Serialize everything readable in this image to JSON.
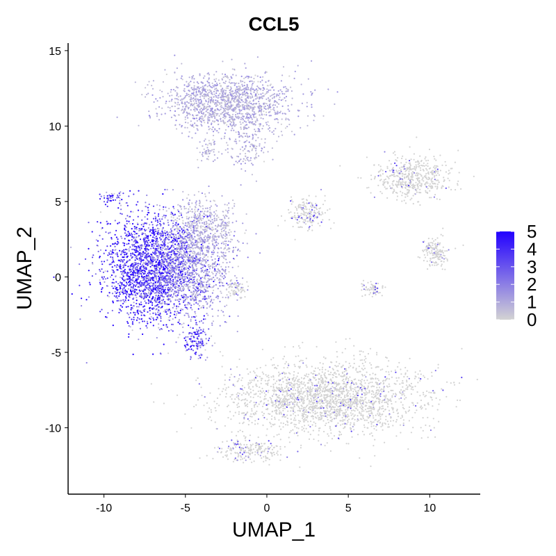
{
  "chart_data": {
    "type": "scatter",
    "title": "CCL5",
    "xlabel": "UMAP_1",
    "ylabel": "UMAP_2",
    "xlim": [
      -12.2,
      13.1
    ],
    "ylim": [
      -14.4,
      15.5
    ],
    "xticks": [
      -10,
      -5,
      0,
      5,
      10
    ],
    "yticks": [
      -10,
      -5,
      0,
      5,
      10,
      15
    ],
    "grid": false,
    "legend": {
      "position": "right",
      "title": "",
      "ticks": [
        0,
        1,
        2,
        3,
        4,
        5
      ],
      "low_color": "#d3d3d3",
      "high_color": "#2200ff"
    },
    "clusters": [
      {
        "x": -7.0,
        "y": 0.6,
        "sx": 1.5,
        "sy": 1.8,
        "expr_mean": 3.6,
        "n": 2200
      },
      {
        "x": -4.5,
        "y": 0.8,
        "sx": 1.3,
        "sy": 1.8,
        "expr_mean": 1.2,
        "n": 1000
      },
      {
        "x": -4.0,
        "y": 3.5,
        "sx": 0.9,
        "sy": 0.9,
        "expr_mean": 0.6,
        "n": 300
      },
      {
        "x": -4.3,
        "y": -4.2,
        "sx": 0.4,
        "sy": 0.6,
        "expr_mean": 3.0,
        "n": 120
      },
      {
        "x": -1.8,
        "y": -0.8,
        "sx": 0.3,
        "sy": 0.3,
        "expr_mean": 0.2,
        "n": 60
      },
      {
        "x": -2.5,
        "y": 11.5,
        "sx": 2.0,
        "sy": 1.0,
        "expr_mean": 0.9,
        "n": 1400
      },
      {
        "x": -1.2,
        "y": 8.5,
        "sx": 0.6,
        "sy": 0.7,
        "expr_mean": 0.8,
        "n": 120
      },
      {
        "x": -3.6,
        "y": 8.3,
        "sx": 0.3,
        "sy": 0.3,
        "expr_mean": 0.6,
        "n": 50
      },
      {
        "x": -2.5,
        "y": 3.2,
        "sx": 0.15,
        "sy": 0.6,
        "expr_mean": 0.5,
        "n": 40
      },
      {
        "x": 2.5,
        "y": 4.2,
        "sx": 0.6,
        "sy": 0.5,
        "expr_mean": 0.3,
        "n": 180
      },
      {
        "x": 9.0,
        "y": 6.6,
        "sx": 1.2,
        "sy": 0.7,
        "expr_mean": 0.1,
        "n": 500
      },
      {
        "x": 10.3,
        "y": 1.6,
        "sx": 0.45,
        "sy": 0.5,
        "expr_mean": 0.1,
        "n": 150
      },
      {
        "x": 6.4,
        "y": -0.8,
        "sx": 0.35,
        "sy": 0.35,
        "expr_mean": 0.3,
        "n": 60
      },
      {
        "x": 3.5,
        "y": -8.0,
        "sx": 3.0,
        "sy": 1.2,
        "expr_mean": 0.1,
        "n": 2200
      },
      {
        "x": -1.0,
        "y": -11.5,
        "sx": 1.0,
        "sy": 0.4,
        "expr_mean": 0.3,
        "n": 200
      },
      {
        "x": -9.5,
        "y": 5.3,
        "sx": 0.4,
        "sy": 0.15,
        "expr_mean": 3.5,
        "n": 40
      }
    ]
  }
}
